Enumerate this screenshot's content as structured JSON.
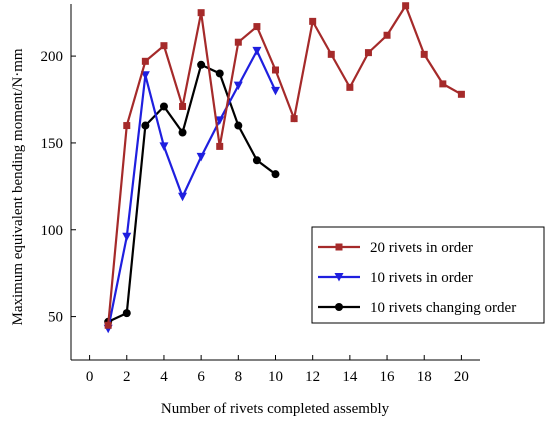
{
  "chart_data": {
    "type": "line",
    "title": "",
    "xlabel": "Number of rivets completed assembly",
    "ylabel": "Maximum equivalent bending moment/N·mm",
    "xlim": [
      -1,
      21
    ],
    "ylim": [
      25,
      230
    ],
    "xticks": [
      0,
      2,
      4,
      6,
      8,
      10,
      12,
      14,
      16,
      18,
      20
    ],
    "yticks": [
      50,
      100,
      150,
      200
    ],
    "grid": false,
    "legend_position": "right",
    "series": [
      {
        "name": "20 rivets in order",
        "color": "#a52a2a",
        "marker": "square",
        "x": [
          1,
          2,
          3,
          4,
          5,
          6,
          7,
          8,
          9,
          10,
          11,
          12,
          13,
          14,
          15,
          16,
          17,
          18,
          19,
          20
        ],
        "y": [
          45,
          160,
          197,
          206,
          171,
          225,
          148,
          208,
          217,
          192,
          164,
          220,
          201,
          182,
          202,
          212,
          229,
          201,
          184,
          178
        ]
      },
      {
        "name": "10 rivets in order",
        "color": "#1f1fdf",
        "marker": "triangle-down",
        "x": [
          1,
          2,
          3,
          4,
          5,
          6,
          7,
          8,
          9,
          10
        ],
        "y": [
          43,
          96,
          189,
          148,
          119,
          142,
          163,
          183,
          203,
          180
        ]
      },
      {
        "name": "10 rivets changing order",
        "color": "#000000",
        "marker": "circle",
        "x": [
          1,
          2,
          3,
          4,
          5,
          6,
          7,
          8,
          9,
          10
        ],
        "y": [
          47,
          52,
          160,
          171,
          156,
          195,
          190,
          160,
          140,
          132
        ]
      }
    ]
  }
}
